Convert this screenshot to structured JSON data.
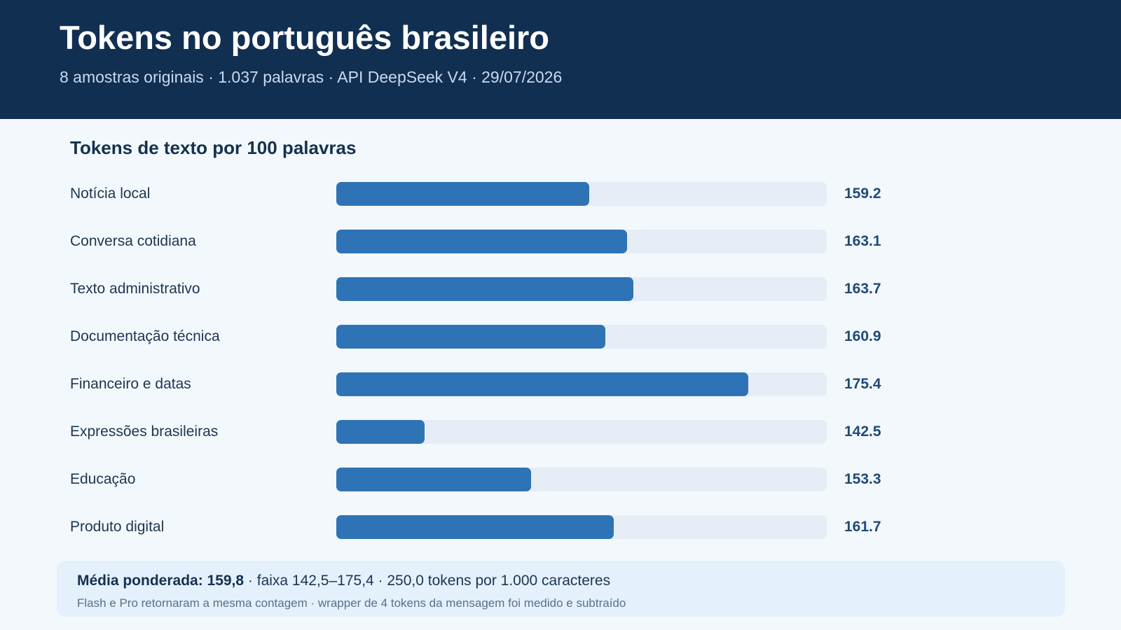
{
  "header": {
    "title": "Tokens no português brasileiro",
    "subtitle": "8 amostras originais · 1.037 palavras · API DeepSeek V4 · 29/07/2026"
  },
  "chart_data": {
    "type": "bar",
    "orientation": "horizontal",
    "title": "Tokens de texto por 100 palavras",
    "xlim": [
      133.5,
      183.4
    ],
    "categories": [
      "Notícia local",
      "Conversa cotidiana",
      "Texto administrativo",
      "Documentação técnica",
      "Financeiro e datas",
      "Expressões brasileiras",
      "Educação",
      "Produto digital"
    ],
    "values": [
      159.2,
      163.1,
      163.7,
      160.9,
      175.4,
      142.5,
      153.3,
      161.7
    ],
    "value_labels": [
      "159.2",
      "163.1",
      "163.7",
      "160.9",
      "175.4",
      "142.5",
      "153.3",
      "161.7"
    ],
    "bar_color": "#2e73b5",
    "track_color": "#e6edf6"
  },
  "summary": {
    "lead": "Média ponderada: 159,8",
    "rest": " · faixa 142,5–175,4 · 250,0 tokens por 1.000 caracteres",
    "note": "Flash e Pro retornaram a mesma contagem · wrapper de 4 tokens da mensagem foi medido e subtraído"
  },
  "colors": {
    "header_bg": "#112f51",
    "page_bg": "#f3f8fd",
    "accent": "#2e73b5"
  }
}
